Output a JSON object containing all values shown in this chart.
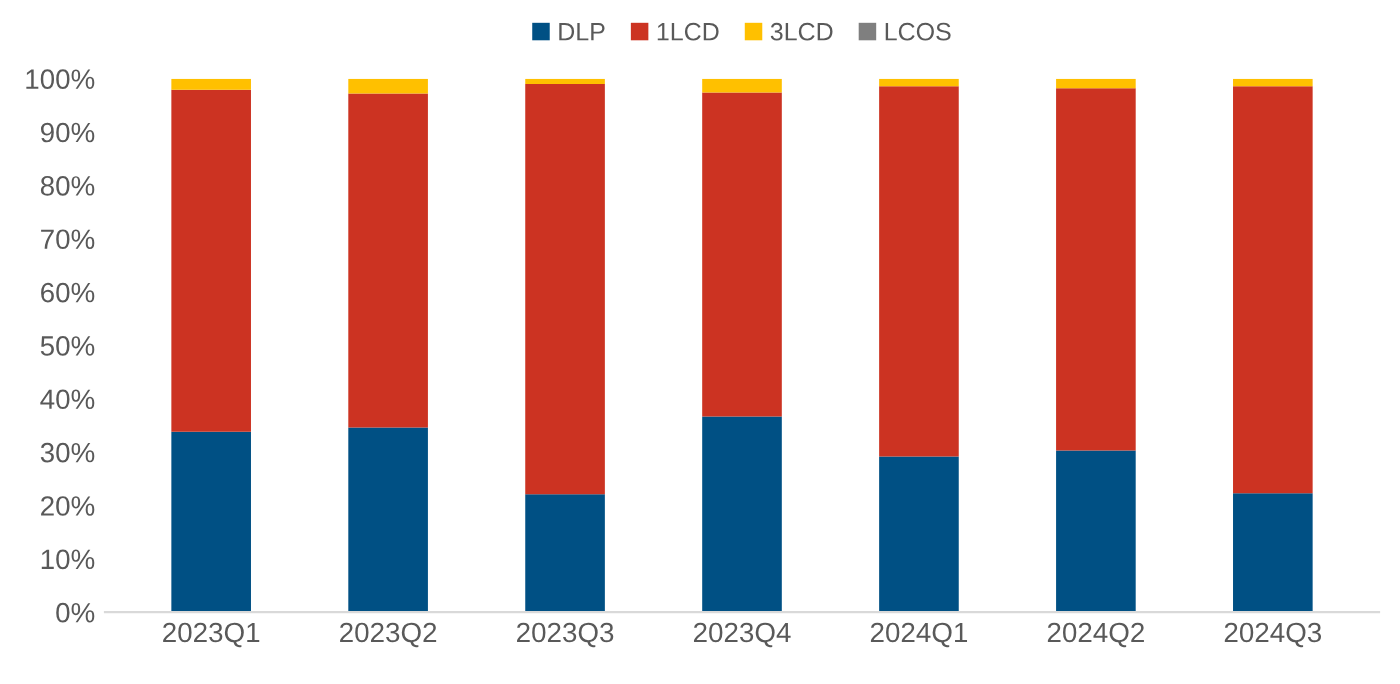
{
  "chart_data": {
    "type": "bar",
    "stacked": true,
    "categories": [
      "2023Q1",
      "2023Q2",
      "2023Q3",
      "2023Q4",
      "2024Q1",
      "2024Q2",
      "2024Q3"
    ],
    "series": [
      {
        "name": "DLP",
        "color": "#005084",
        "values": [
          33.8,
          34.6,
          22.1,
          36.7,
          29.2,
          30.3,
          22.3
        ]
      },
      {
        "name": "1LCD",
        "color": "#cc3322",
        "values": [
          64.1,
          62.6,
          76.9,
          60.7,
          69.4,
          67.9,
          76.3
        ]
      },
      {
        "name": "3LCD",
        "color": "#ffc000",
        "values": [
          2.1,
          2.8,
          1.0,
          2.6,
          1.4,
          1.8,
          1.4
        ]
      },
      {
        "name": "LCOS",
        "color": "#7f7f7f",
        "values": [
          null,
          null,
          null,
          null,
          null,
          null,
          null
        ]
      }
    ],
    "ylim": [
      0,
      100
    ],
    "yticks": [
      {
        "value": 0,
        "label": "0%"
      },
      {
        "value": 10,
        "label": "10%"
      },
      {
        "value": 20,
        "label": "20%"
      },
      {
        "value": 30,
        "label": "30%"
      },
      {
        "value": 40,
        "label": "40%"
      },
      {
        "value": 50,
        "label": "50%"
      },
      {
        "value": 60,
        "label": "60%"
      },
      {
        "value": 70,
        "label": "70%"
      },
      {
        "value": 80,
        "label": "80%"
      },
      {
        "value": 90,
        "label": "90%"
      },
      {
        "value": 100,
        "label": "100%"
      }
    ],
    "legend": "top",
    "grid": false
  }
}
